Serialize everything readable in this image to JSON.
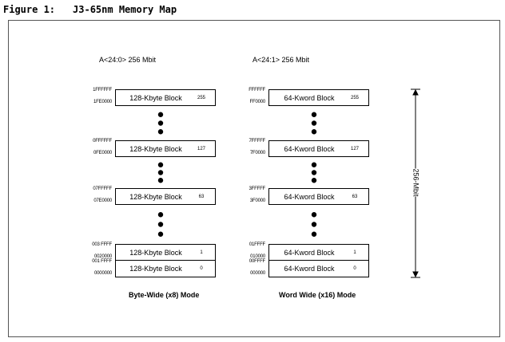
{
  "figure": {
    "number": "Figure 1:",
    "title": "J3-65nm Memory Map"
  },
  "left": {
    "header": "A<24:0> 256 Mbit",
    "caption": "Byte-Wide (x8) Mode",
    "blocks": [
      {
        "label": "128-Kbyte Block",
        "num": "255",
        "top": "1FFFFFF",
        "bottom": "1FE0000"
      },
      {
        "label": "128-Kbyte Block",
        "num": "127",
        "top": "0FFFFFF",
        "bottom": "0FE0000"
      },
      {
        "label": "128-Kbyte Block",
        "num": "63",
        "top": "07FFFFF",
        "bottom": "07E0000"
      },
      {
        "label": "128-Kbyte Block",
        "num": "1",
        "top": "003 FFFF",
        "bottom": "0020000"
      },
      {
        "label": "128-Kbyte Block",
        "num": "0",
        "top": "001 FFFF",
        "bottom": "0000000"
      }
    ]
  },
  "right": {
    "header": "A<24:1> 256 Mbit",
    "caption": "Word Wide (x16) Mode",
    "blocks": [
      {
        "label": "64-Kword Block",
        "num": "255",
        "top": "FFFFFF",
        "bottom": "FF0000"
      },
      {
        "label": "64-Kword Block",
        "num": "127",
        "top": "7FFFFF",
        "bottom": "7F0000"
      },
      {
        "label": "64-Kword Block",
        "num": "63",
        "top": "3FFFFF",
        "bottom": "3F0000"
      },
      {
        "label": "64-Kword Block",
        "num": "1",
        "top": "01FFFF",
        "bottom": "010000"
      },
      {
        "label": "64-Kword Block",
        "num": "0",
        "top": "00FFFF",
        "bottom": "000000"
      }
    ]
  },
  "size_label": "256-Mbit"
}
